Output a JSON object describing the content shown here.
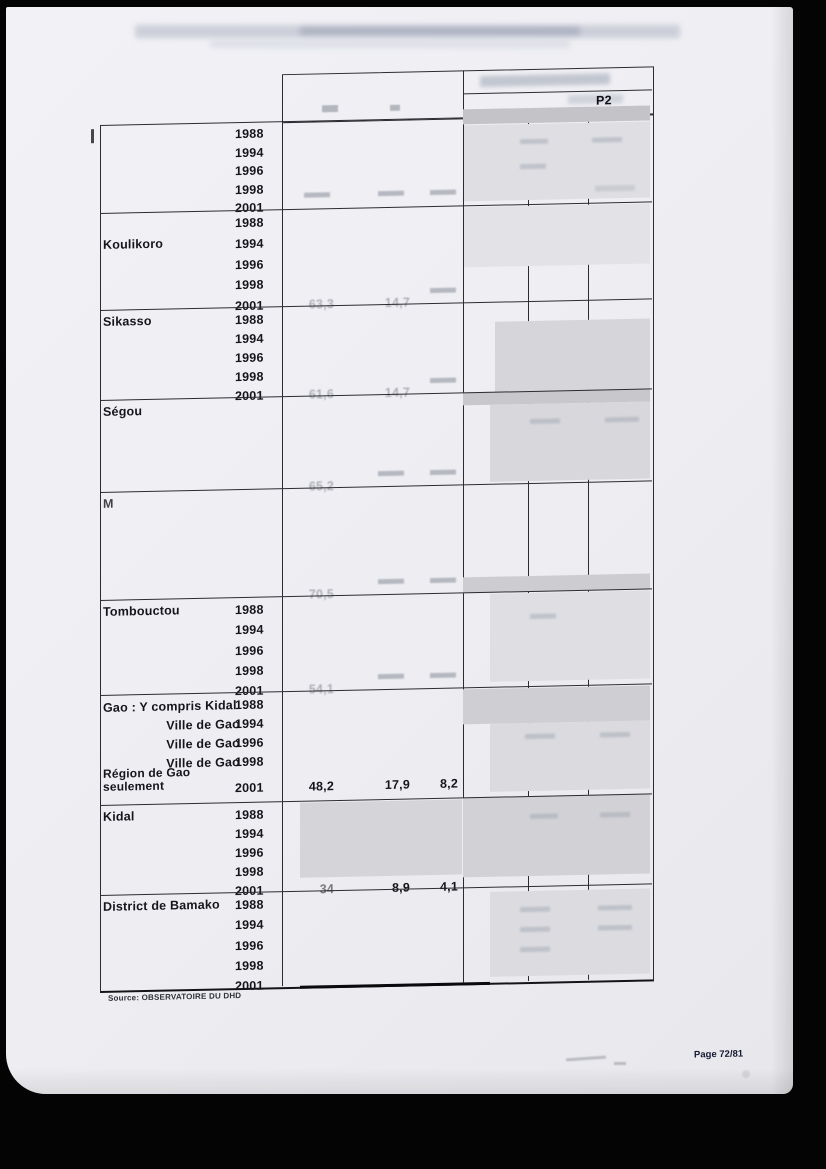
{
  "document": {
    "corner_header": "P2",
    "source_note": "Source: OBSERVATOIRE DU DHD",
    "page_number": "Page 72/81"
  },
  "table": {
    "blocks": [
      {
        "name": "region-1",
        "label": "",
        "years": [
          "1988",
          "1994",
          "1996",
          "1998",
          "2001"
        ],
        "values_2001": [
          "",
          "",
          ""
        ],
        "values_faint": true
      },
      {
        "name": "koulikoro",
        "label": "Koulikoro",
        "years": [
          "1988",
          "1994",
          "1996",
          "1998",
          "2001"
        ],
        "values_2001": [
          "63,3",
          "14,7",
          ""
        ],
        "values_faint": true
      },
      {
        "name": "sikasso",
        "label": "Sikasso",
        "years": [
          "1988",
          "1994",
          "1996",
          "1998",
          "2001"
        ],
        "values_2001": [
          "61,6",
          "14,7",
          ""
        ],
        "values_faint": true
      },
      {
        "name": "segou",
        "label": "Ségou",
        "years": [],
        "values_2001": [
          "65,2",
          "",
          ""
        ],
        "values_faint": true
      },
      {
        "name": "mopti",
        "label": "M",
        "years": [],
        "values_2001": [
          "70,5",
          "",
          ""
        ],
        "values_faint": true
      },
      {
        "name": "tombouctou",
        "label": "Tombouctou",
        "years": [
          "1988",
          "1994",
          "1996",
          "1998",
          "2001"
        ],
        "values_2001": [
          "54,1",
          "",
          ""
        ],
        "values_faint": true
      },
      {
        "name": "gao",
        "label": "",
        "row_labels": [
          "Gao : Y compris Kidal",
          "Ville de Gao",
          "Ville de Gao",
          "Ville de Gao",
          "Région de Gao seulement"
        ],
        "years": [
          "1988",
          "1994",
          "1996",
          "1998",
          "2001"
        ],
        "values_2001": [
          "48,2",
          "17,9",
          "8,2"
        ],
        "values_faint": false
      },
      {
        "name": "kidal",
        "label": "Kidal",
        "years": [
          "1988",
          "1994",
          "1996",
          "1998",
          "2001"
        ],
        "values_2001": [
          "34",
          "8,9",
          "4,1"
        ],
        "values_faint": false
      },
      {
        "name": "bamako",
        "label": "District de Bamako",
        "years": [
          "1988",
          "1994",
          "1996",
          "1998",
          "2001"
        ],
        "values_2001": [
          "",
          "",
          ""
        ],
        "values_faint": false
      }
    ]
  }
}
